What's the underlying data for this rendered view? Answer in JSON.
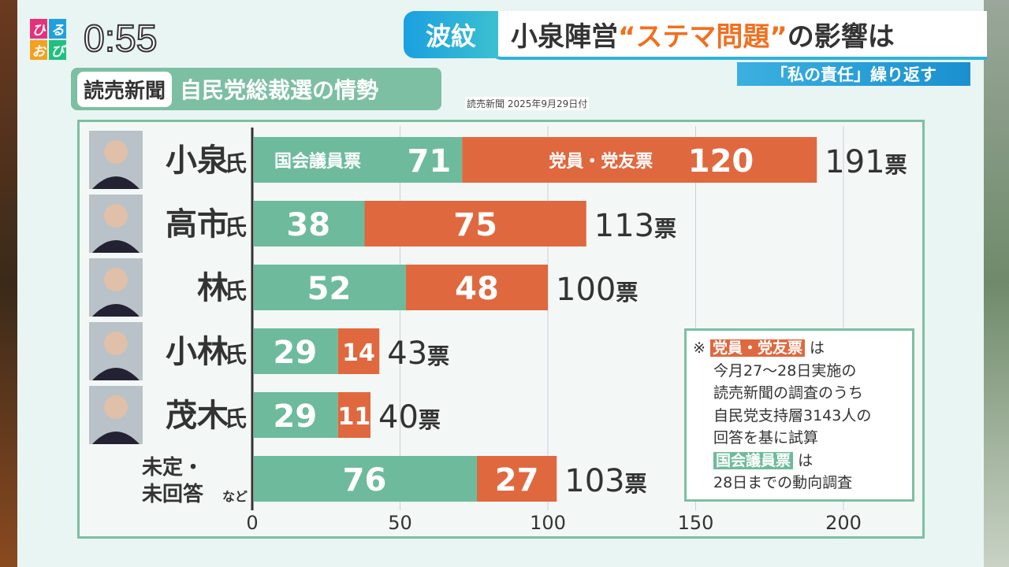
{
  "program": {
    "logo": [
      "ひ",
      "る",
      "お",
      "び"
    ],
    "clock": "0:55"
  },
  "headline": {
    "tag": "波紋",
    "pre": "小泉陣営",
    "quote": "“ステマ問題”",
    "post": "の影響は",
    "sub": "「私の責任」繰り返す"
  },
  "title": {
    "source": "読売新聞",
    "text": "自民党総裁選の情勢",
    "date": "読売新聞 2025年9月29日付"
  },
  "colors": {
    "diet": "#6dbb9c",
    "member": "#e0683f"
  },
  "chart_data": {
    "type": "bar",
    "stacked": true,
    "orientation": "horizontal",
    "categories": [
      "小泉氏",
      "高市氏",
      "林氏",
      "小林氏",
      "茂木氏",
      "未定・未回答など"
    ],
    "category_labels": [
      {
        "name": "小泉",
        "suffix": "氏"
      },
      {
        "name": "高市",
        "suffix": "氏"
      },
      {
        "name": "林",
        "suffix": "氏"
      },
      {
        "name": "小林",
        "suffix": "氏"
      },
      {
        "name": "茂木",
        "suffix": "氏"
      },
      {
        "name": "未定・",
        "name2": "未回答",
        "suffix": "など"
      }
    ],
    "series": [
      {
        "name": "国会議員票",
        "values": [
          71,
          38,
          52,
          29,
          29,
          76
        ]
      },
      {
        "name": "党員・党友票",
        "values": [
          120,
          75,
          48,
          14,
          11,
          27
        ]
      }
    ],
    "totals": [
      191,
      113,
      100,
      43,
      40,
      103
    ],
    "total_suffix": "票",
    "xticks": [
      0,
      50,
      100,
      150,
      200
    ],
    "xlim": [
      0,
      225
    ],
    "grid": true
  },
  "note": {
    "mark": "※",
    "member_label": "党員・党友票",
    "ha": "は",
    "lines1": [
      "今月27～28日実施の",
      "読売新聞の調査のうち",
      "自民党支持層3143人の",
      "回答を基に試算"
    ],
    "diet_label": "国会議員票",
    "line2": "28日までの動向調査"
  }
}
